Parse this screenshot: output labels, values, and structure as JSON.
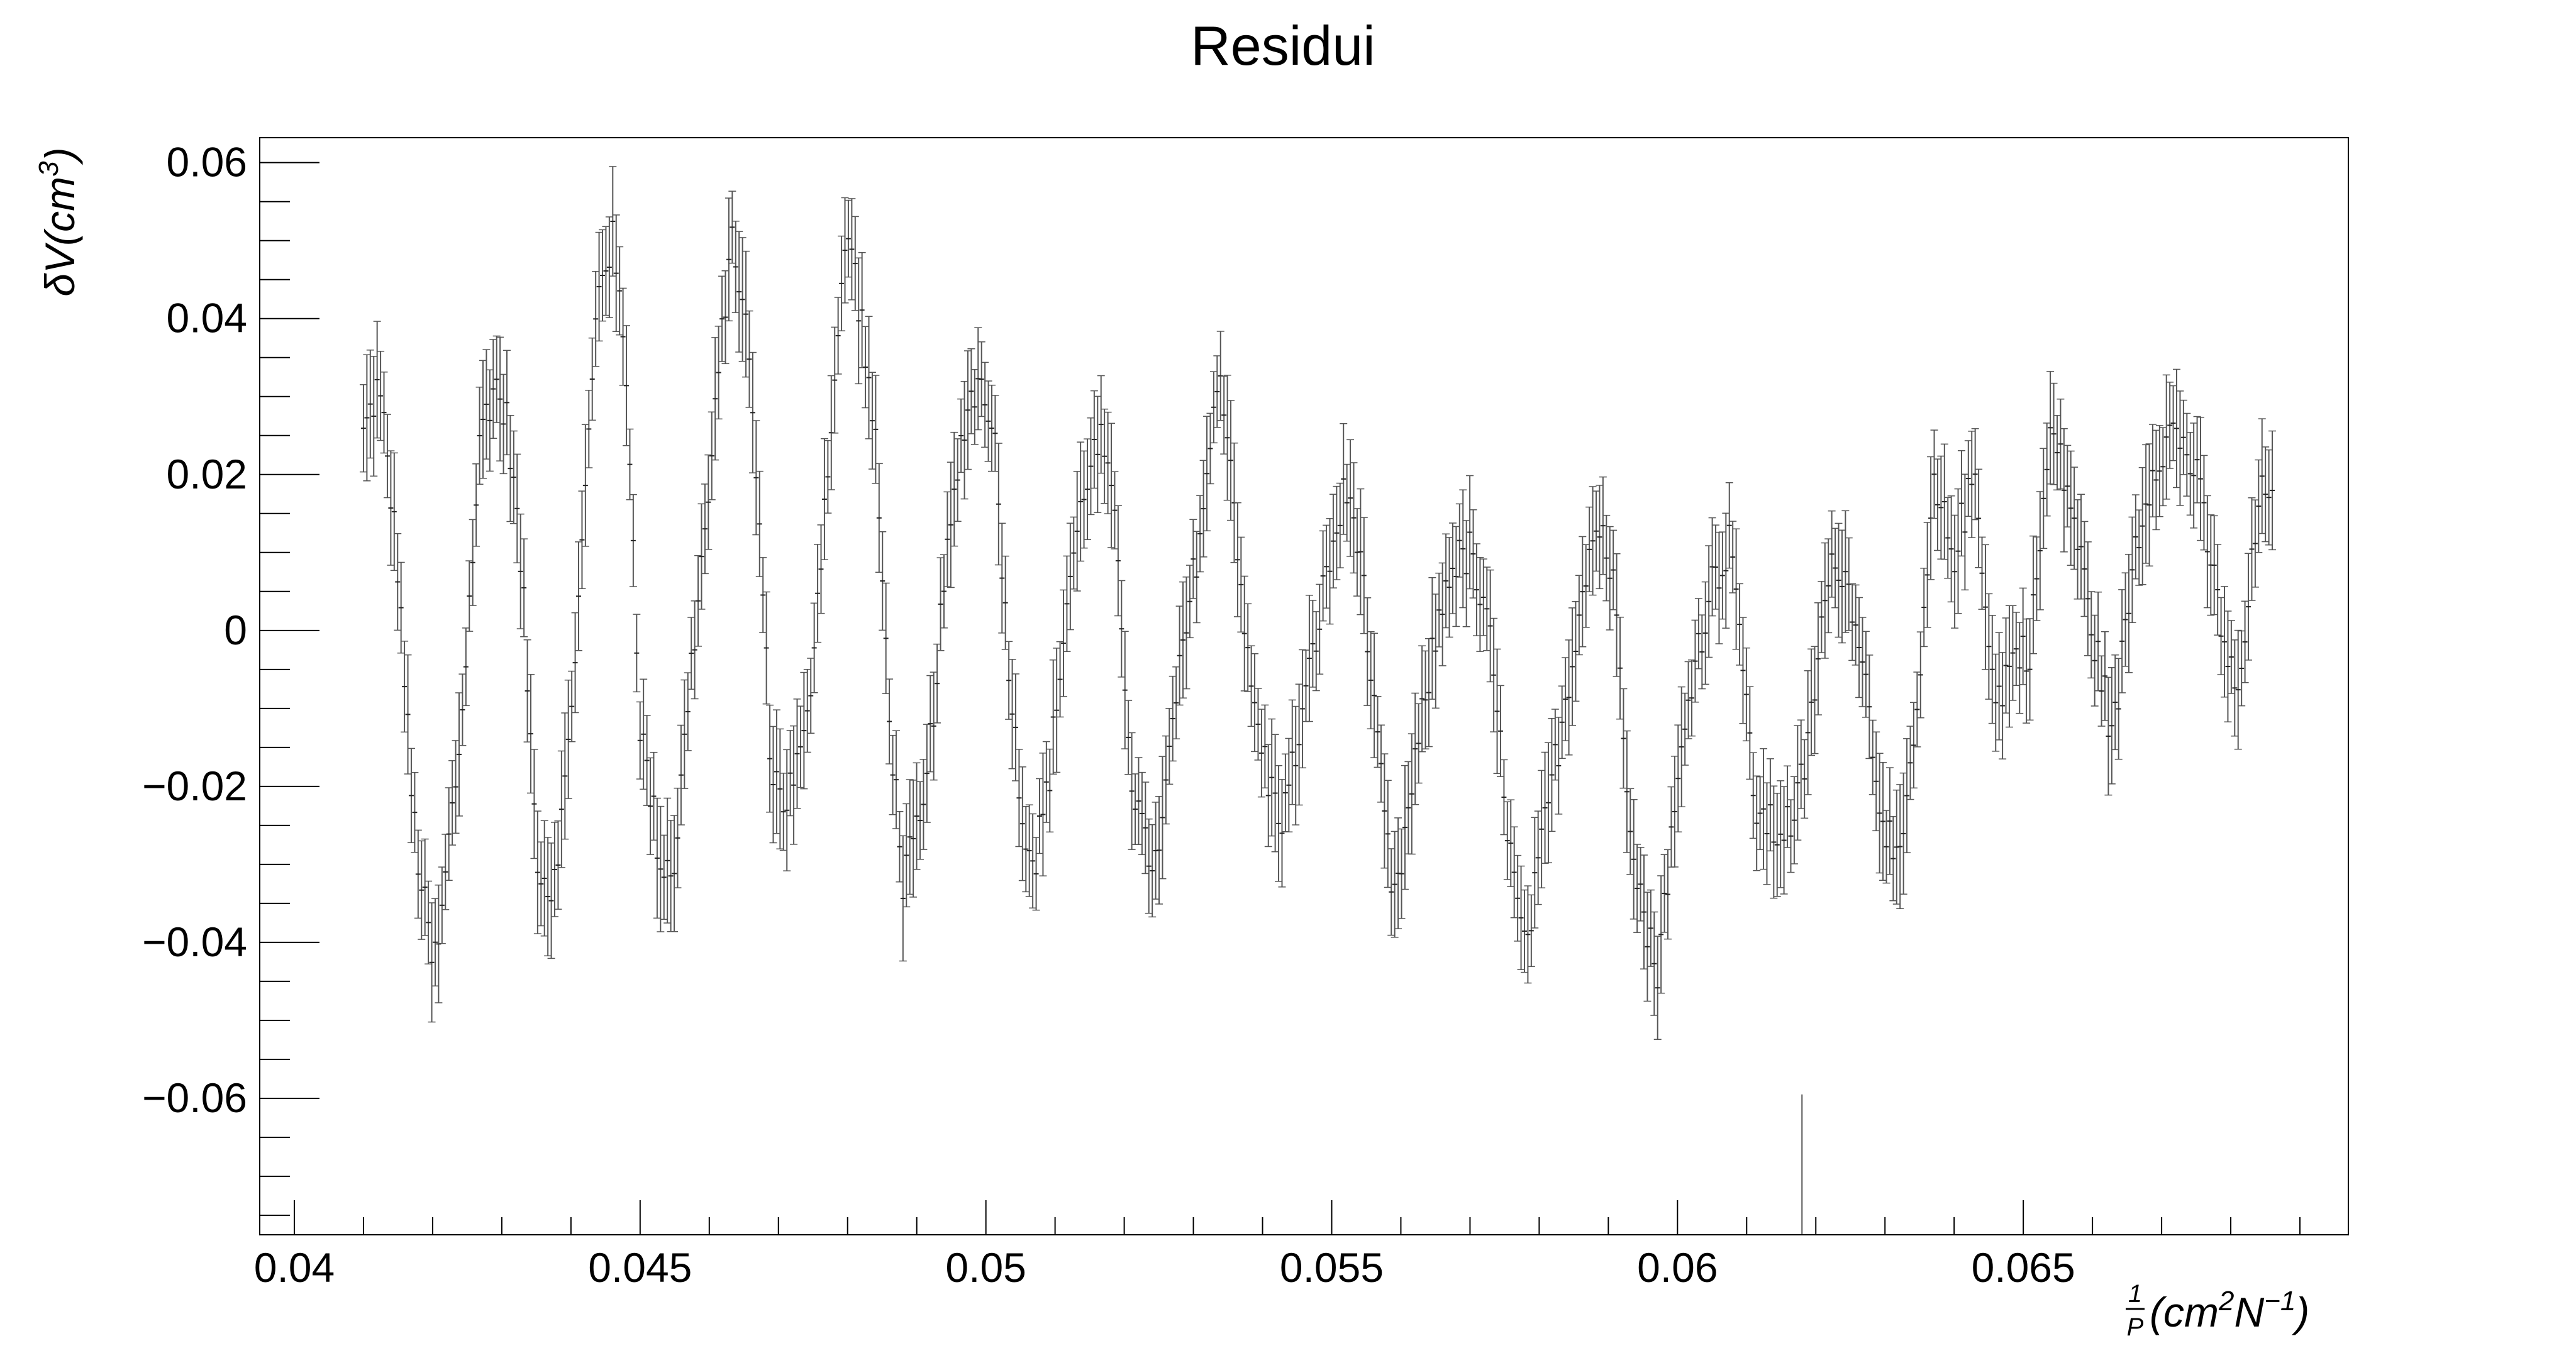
{
  "chart_data": {
    "type": "scatter",
    "title": "Residui",
    "xlabel": {
      "frac_numerator": "1",
      "frac_denominator": "P",
      "text": "(cm",
      "sup1": "2",
      "mid": "N",
      "sup2": "−1",
      "end": ")"
    },
    "ylabel": {
      "text": "δV(cm",
      "sup": "3",
      "end": ")"
    },
    "xlim": [
      0.0395,
      0.0697
    ],
    "ylim": [
      -0.0775,
      0.0632
    ],
    "xticks": [
      {
        "value": 0.04,
        "label": "0.04"
      },
      {
        "value": 0.045,
        "label": "0.045"
      },
      {
        "value": 0.05,
        "label": "0.05"
      },
      {
        "value": 0.055,
        "label": "0.055"
      },
      {
        "value": 0.06,
        "label": "0.06"
      },
      {
        "value": 0.065,
        "label": "0.065"
      }
    ],
    "yticks": [
      {
        "value": 0.06,
        "label": "0.06"
      },
      {
        "value": 0.04,
        "label": "0.04"
      },
      {
        "value": 0.02,
        "label": "0.02"
      },
      {
        "value": 0,
        "label": "0"
      },
      {
        "value": -0.02,
        "label": "−0.02"
      },
      {
        "value": -0.04,
        "label": "−0.04"
      },
      {
        "value": -0.06,
        "label": "−0.06"
      }
    ],
    "grid": false,
    "error_bars": true,
    "series_color": "#555555",
    "keypoints": [
      {
        "x": 0.041,
        "y": 0.025
      },
      {
        "x": 0.0412,
        "y": 0.031
      },
      {
        "x": 0.0413,
        "y": 0.026
      },
      {
        "x": 0.0415,
        "y": 0.008
      },
      {
        "x": 0.0417,
        "y": -0.022
      },
      {
        "x": 0.0418,
        "y": -0.03
      },
      {
        "x": 0.042,
        "y": -0.043
      },
      {
        "x": 0.0421,
        "y": -0.04
      },
      {
        "x": 0.0422,
        "y": -0.03
      },
      {
        "x": 0.0424,
        "y": -0.014
      },
      {
        "x": 0.0427,
        "y": 0.026
      },
      {
        "x": 0.0429,
        "y": 0.032
      },
      {
        "x": 0.0431,
        "y": 0.026
      },
      {
        "x": 0.0433,
        "y": 0.006
      },
      {
        "x": 0.0435,
        "y": -0.028
      },
      {
        "x": 0.0437,
        "y": -0.034
      },
      {
        "x": 0.0439,
        "y": -0.022
      },
      {
        "x": 0.0441,
        "y": 0.002
      },
      {
        "x": 0.0444,
        "y": 0.045
      },
      {
        "x": 0.0446,
        "y": 0.05
      },
      {
        "x": 0.0448,
        "y": 0.034
      },
      {
        "x": 0.045,
        "y": -0.012
      },
      {
        "x": 0.0453,
        "y": -0.03
      },
      {
        "x": 0.0455,
        "y": -0.03
      },
      {
        "x": 0.0457,
        "y": -0.008
      },
      {
        "x": 0.046,
        "y": 0.018
      },
      {
        "x": 0.0463,
        "y": 0.05
      },
      {
        "x": 0.0465,
        "y": 0.043
      },
      {
        "x": 0.0467,
        "y": 0.018
      },
      {
        "x": 0.0469,
        "y": -0.018
      },
      {
        "x": 0.0471,
        "y": -0.022
      },
      {
        "x": 0.0474,
        "y": -0.014
      },
      {
        "x": 0.0477,
        "y": 0.02
      },
      {
        "x": 0.048,
        "y": 0.052
      },
      {
        "x": 0.0482,
        "y": 0.04
      },
      {
        "x": 0.0484,
        "y": 0.024
      },
      {
        "x": 0.0486,
        "y": -0.01
      },
      {
        "x": 0.0488,
        "y": -0.032
      },
      {
        "x": 0.0491,
        "y": -0.024
      },
      {
        "x": 0.0494,
        "y": 0.006
      },
      {
        "x": 0.0497,
        "y": 0.028
      },
      {
        "x": 0.0499,
        "y": 0.032
      },
      {
        "x": 0.0501,
        "y": 0.028
      },
      {
        "x": 0.0503,
        "y": 0.0
      },
      {
        "x": 0.0505,
        "y": -0.022
      },
      {
        "x": 0.0507,
        "y": -0.03
      },
      {
        "x": 0.0509,
        "y": -0.02
      },
      {
        "x": 0.0512,
        "y": 0.006
      },
      {
        "x": 0.0515,
        "y": 0.022
      },
      {
        "x": 0.0517,
        "y": 0.024
      },
      {
        "x": 0.0519,
        "y": 0.01
      },
      {
        "x": 0.0521,
        "y": -0.018
      },
      {
        "x": 0.0523,
        "y": -0.028
      },
      {
        "x": 0.0525,
        "y": -0.03
      },
      {
        "x": 0.0527,
        "y": -0.012
      },
      {
        "x": 0.0529,
        "y": 0.0
      },
      {
        "x": 0.0532,
        "y": 0.02
      },
      {
        "x": 0.0534,
        "y": 0.034
      },
      {
        "x": 0.0536,
        "y": 0.016
      },
      {
        "x": 0.0538,
        "y": -0.006
      },
      {
        "x": 0.0541,
        "y": -0.02
      },
      {
        "x": 0.0543,
        "y": -0.024
      },
      {
        "x": 0.0546,
        "y": -0.01
      },
      {
        "x": 0.0549,
        "y": 0.006
      },
      {
        "x": 0.0552,
        "y": 0.018
      },
      {
        "x": 0.0554,
        "y": 0.012
      },
      {
        "x": 0.0556,
        "y": -0.01
      },
      {
        "x": 0.0559,
        "y": -0.036
      },
      {
        "x": 0.0561,
        "y": -0.024
      },
      {
        "x": 0.0564,
        "y": -0.006
      },
      {
        "x": 0.0567,
        "y": 0.008
      },
      {
        "x": 0.057,
        "y": 0.01
      },
      {
        "x": 0.0573,
        "y": -0.002
      },
      {
        "x": 0.0576,
        "y": -0.03
      },
      {
        "x": 0.0578,
        "y": -0.042
      },
      {
        "x": 0.0581,
        "y": -0.024
      },
      {
        "x": 0.0584,
        "y": -0.008
      },
      {
        "x": 0.0587,
        "y": 0.01
      },
      {
        "x": 0.0589,
        "y": 0.014
      },
      {
        "x": 0.0591,
        "y": 0.004
      },
      {
        "x": 0.0593,
        "y": -0.022
      },
      {
        "x": 0.0595,
        "y": -0.036
      },
      {
        "x": 0.0597,
        "y": -0.044
      },
      {
        "x": 0.0599,
        "y": -0.028
      },
      {
        "x": 0.0602,
        "y": -0.006
      },
      {
        "x": 0.0605,
        "y": 0.006
      },
      {
        "x": 0.0608,
        "y": 0.012
      },
      {
        "x": 0.0611,
        "y": -0.022
      },
      {
        "x": 0.0614,
        "y": -0.026
      },
      {
        "x": 0.0617,
        "y": -0.024
      },
      {
        "x": 0.0619,
        "y": -0.014
      },
      {
        "x": 0.0621,
        "y": 0.002
      },
      {
        "x": 0.0623,
        "y": 0.01
      },
      {
        "x": 0.0626,
        "y": 0.002
      },
      {
        "x": 0.0629,
        "y": -0.02
      },
      {
        "x": 0.0632,
        "y": -0.032
      },
      {
        "x": 0.0635,
        "y": -0.008
      },
      {
        "x": 0.0637,
        "y": 0.018
      },
      {
        "x": 0.064,
        "y": 0.01
      },
      {
        "x": 0.0643,
        "y": 0.02
      },
      {
        "x": 0.0646,
        "y": -0.01
      },
      {
        "x": 0.0648,
        "y": -0.004
      },
      {
        "x": 0.0651,
        "y": -0.002
      },
      {
        "x": 0.0654,
        "y": 0.026
      },
      {
        "x": 0.0657,
        "y": 0.016
      },
      {
        "x": 0.066,
        "y": 0.0
      },
      {
        "x": 0.0663,
        "y": -0.014
      },
      {
        "x": 0.0666,
        "y": 0.01
      },
      {
        "x": 0.0669,
        "y": 0.022
      },
      {
        "x": 0.0672,
        "y": 0.026
      },
      {
        "x": 0.0675,
        "y": 0.02
      },
      {
        "x": 0.0678,
        "y": 0.004
      },
      {
        "x": 0.0681,
        "y": -0.01
      },
      {
        "x": 0.0684,
        "y": 0.016
      },
      {
        "x": 0.0686,
        "y": 0.02
      }
    ],
    "typical_error": 0.006,
    "outliers": [
      {
        "x": 0.0618,
        "y": -0.0775,
        "err": 0.009
      }
    ]
  }
}
